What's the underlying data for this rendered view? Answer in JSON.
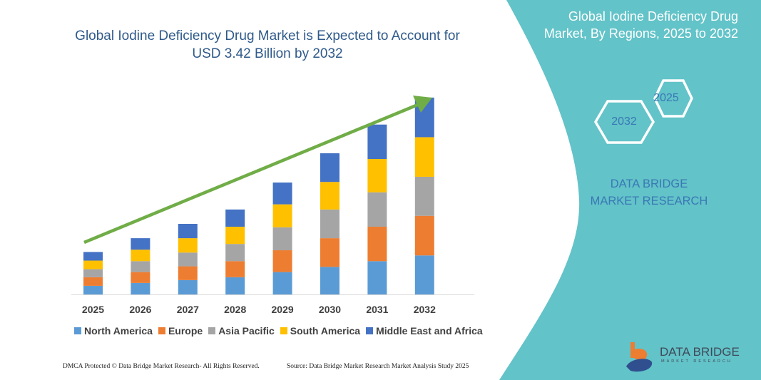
{
  "title": "Global Iodine Deficiency Drug Market is Expected to Account for USD 3.42 Billion by 2032",
  "side_panel": {
    "title": "Global Iodine Deficiency Drug Market, By Regions, 2025 to 2032",
    "hex_start": "2025",
    "hex_end": "2032",
    "brand_text": "DATA BRIDGE MARKET RESEARCH",
    "panel_color": "#62c3c8"
  },
  "chart_data": {
    "type": "bar",
    "stacked": true,
    "categories": [
      "2025",
      "2026",
      "2027",
      "2028",
      "2029",
      "2030",
      "2031",
      "2032"
    ],
    "series": [
      {
        "name": "North America",
        "color": "#5b9bd5",
        "values": [
          0.15,
          0.2,
          0.25,
          0.3,
          0.39,
          0.48,
          0.58,
          0.68
        ]
      },
      {
        "name": "Europe",
        "color": "#ed7d31",
        "values": [
          0.15,
          0.19,
          0.24,
          0.28,
          0.38,
          0.5,
          0.6,
          0.69
        ]
      },
      {
        "name": "Asia Pacific",
        "color": "#a5a5a5",
        "values": [
          0.14,
          0.19,
          0.24,
          0.3,
          0.4,
          0.5,
          0.6,
          0.68
        ]
      },
      {
        "name": "South America",
        "color": "#ffc000",
        "values": [
          0.15,
          0.2,
          0.25,
          0.3,
          0.4,
          0.48,
          0.58,
          0.69
        ]
      },
      {
        "name": "Middle East and Africa",
        "color": "#4472c4",
        "values": [
          0.15,
          0.2,
          0.25,
          0.3,
          0.38,
          0.5,
          0.6,
          0.69
        ]
      }
    ],
    "unit": "USD Billion",
    "legend_position": "bottom",
    "grid": false,
    "trend_arrow_color": "#70ad47"
  },
  "footer": {
    "left": "DMCA Protected © Data Bridge Market Research-  All Rights Reserved.",
    "right": "Source: Data Bridge Market Research  Market Analysis Study 2025"
  },
  "logo": {
    "name": "DATA BRIDGE",
    "tagline": "MARKET RESEARCH"
  }
}
